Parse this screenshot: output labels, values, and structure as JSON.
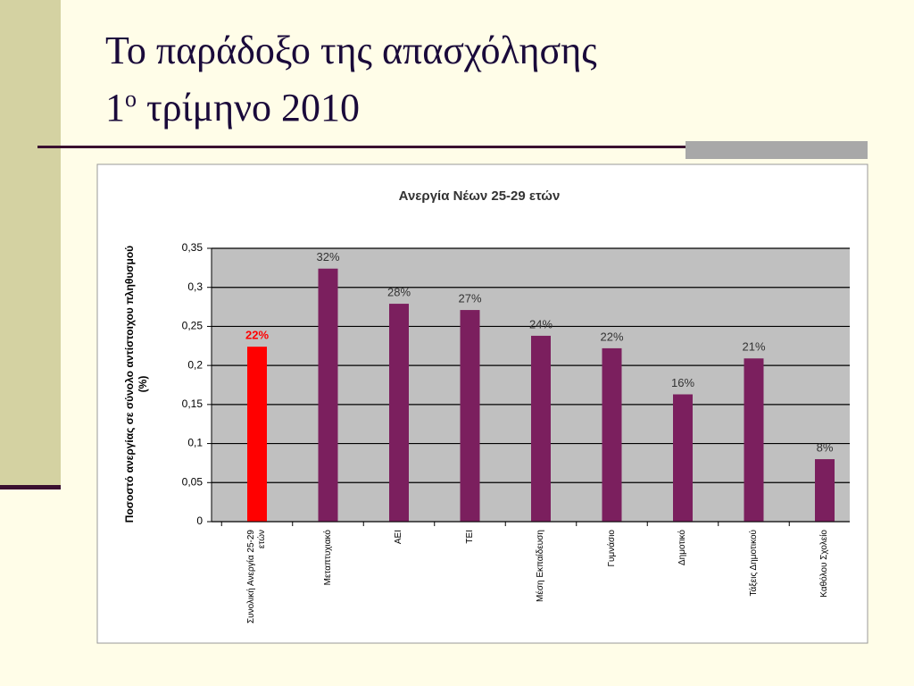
{
  "slide": {
    "title_line1": "Το παράδοξο της απασχόλησης",
    "title_line2_start": "1",
    "title_line2_sup": "ο",
    "title_line2_end": " τρίμηνο 2010"
  },
  "chart_data": {
    "type": "bar",
    "title": "Ανεργία Νέων 25-29 ετών",
    "y_label": "Ποσοστό ανεργίας σε σύνολο αντίστοιχου πληθυσμού (%)",
    "categories": [
      "Συνολική Ανεργία 25-29 ετών",
      "Μεταπτυχιακό",
      "ΑΕΙ",
      "ΤΕΙ",
      "Μέση Εκπαίδευση",
      "Γυμνάσιο",
      "Δημοτικό",
      "Τάξεις Δημοτικού",
      "Καθόλου Σχολείο"
    ],
    "values": [
      0.224,
      0.324,
      0.279,
      0.271,
      0.238,
      0.222,
      0.163,
      0.209,
      0.08
    ],
    "value_labels": [
      "22%",
      "32%",
      "28%",
      "27%",
      "24%",
      "22%",
      "16%",
      "21%",
      "8%"
    ],
    "colors": [
      "#ff0000",
      "#7b1f5e",
      "#7b1f5e",
      "#7b1f5e",
      "#7b1f5e",
      "#7b1f5e",
      "#7b1f5e",
      "#7b1f5e",
      "#7b1f5e"
    ],
    "label_colors": [
      "#ff0000",
      "#333333",
      "#333333",
      "#333333",
      "#333333",
      "#333333",
      "#333333",
      "#333333",
      "#333333"
    ],
    "ylim": [
      0,
      0.35
    ],
    "yticks": [
      0,
      {
        "value": 0.05,
        "label": "0,05"
      },
      {
        "value": 0.1,
        "label": "0,1"
      },
      {
        "value": 0.15,
        "label": "0,15"
      },
      {
        "value": 0.2,
        "label": "0,2"
      },
      {
        "value": 0.25,
        "label": "0,25"
      },
      {
        "value": 0.3,
        "label": "0,3"
      },
      {
        "value": 0.35,
        "label": "0,35"
      }
    ],
    "grid": true
  }
}
